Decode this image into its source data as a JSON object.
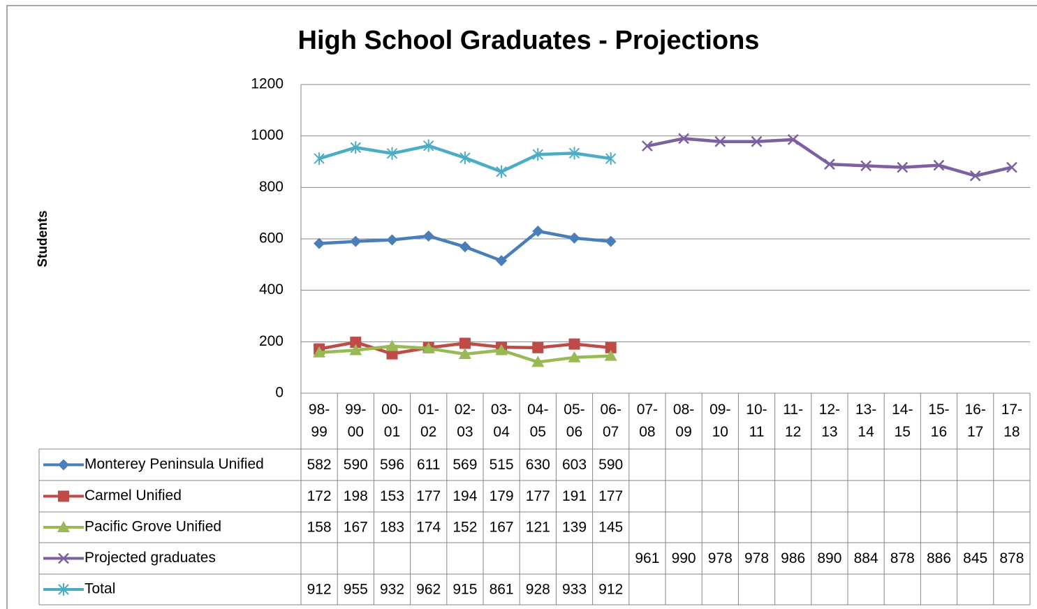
{
  "chart_data": {
    "type": "line",
    "title": "High School Graduates - Projections",
    "y_label": "Students",
    "categories": [
      "98-99",
      "99-00",
      "00-01",
      "01-02",
      "02-03",
      "03-04",
      "04-05",
      "05-06",
      "06-07",
      "07-08",
      "08-09",
      "09-10",
      "10-11",
      "11-12",
      "12-13",
      "13-14",
      "14-15",
      "15-16",
      "16-17",
      "17-18"
    ],
    "ylim": [
      0,
      1200
    ],
    "yticks": [
      0,
      200,
      400,
      600,
      800,
      1000,
      1200
    ],
    "grid": true,
    "series": [
      {
        "name": "Monterey Peninsula Unified",
        "color": "#4a7ebb",
        "marker": "diamond",
        "values": [
          582,
          590,
          596,
          611,
          569,
          515,
          630,
          603,
          590,
          null,
          null,
          null,
          null,
          null,
          null,
          null,
          null,
          null,
          null,
          null
        ]
      },
      {
        "name": "Carmel Unified",
        "color": "#be4b48",
        "marker": "square",
        "values": [
          172,
          198,
          153,
          177,
          194,
          179,
          177,
          191,
          177,
          null,
          null,
          null,
          null,
          null,
          null,
          null,
          null,
          null,
          null,
          null
        ]
      },
      {
        "name": "Pacific Grove Unified",
        "color": "#98b954",
        "marker": "triangle",
        "values": [
          158,
          167,
          183,
          174,
          152,
          167,
          121,
          139,
          145,
          null,
          null,
          null,
          null,
          null,
          null,
          null,
          null,
          null,
          null,
          null
        ]
      },
      {
        "name": "Projected graduates",
        "color": "#7d60a0",
        "marker": "x",
        "values": [
          null,
          null,
          null,
          null,
          null,
          null,
          null,
          null,
          null,
          961,
          990,
          978,
          978,
          986,
          890,
          884,
          878,
          886,
          845,
          878
        ]
      },
      {
        "name": "Total",
        "color": "#4bacc6",
        "marker": "star",
        "values": [
          912,
          955,
          932,
          962,
          915,
          861,
          928,
          933,
          912,
          null,
          null,
          null,
          null,
          null,
          null,
          null,
          null,
          null,
          null,
          null
        ]
      }
    ]
  }
}
